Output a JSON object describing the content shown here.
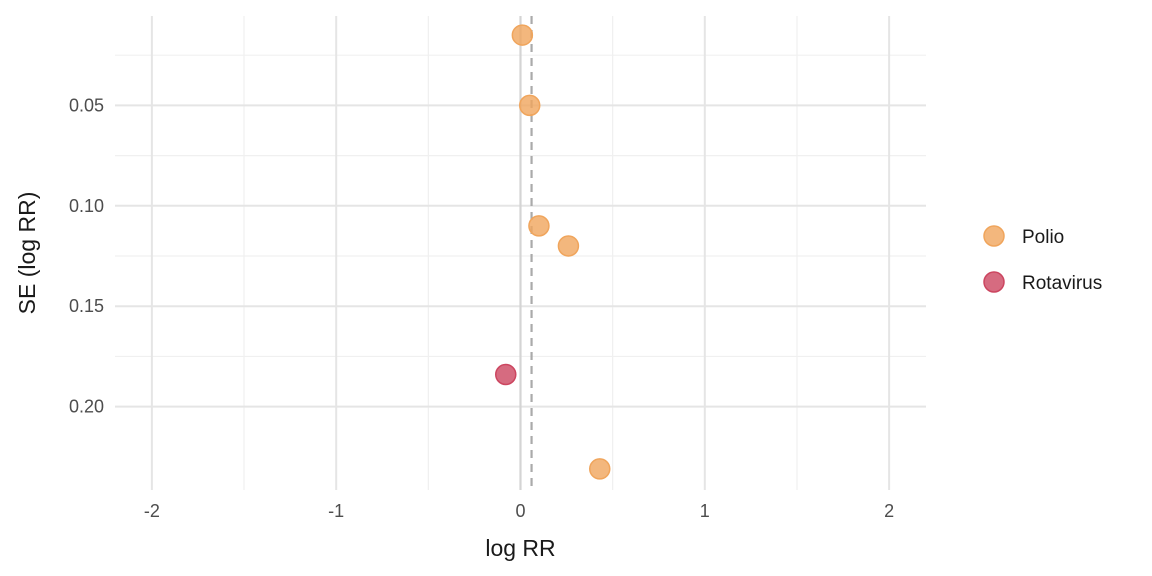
{
  "chart_data": {
    "type": "scatter",
    "title": "",
    "xlabel": "log RR",
    "ylabel": "SE (log RR)",
    "xlim": [
      -2.2,
      2.2
    ],
    "ylim": [
      0.0055,
      0.2415
    ],
    "y_reversed": true,
    "x_ticks": [
      -2,
      -1,
      0,
      1,
      2
    ],
    "x_tick_labels": [
      "-2",
      "-1",
      "0",
      "1",
      "2"
    ],
    "y_ticks": [
      0.05,
      0.1,
      0.15,
      0.2
    ],
    "y_tick_labels": [
      "0.05",
      "0.10",
      "0.15",
      "0.20"
    ],
    "reference_lines": [
      {
        "x": 0,
        "style": "solid",
        "color": "#d4d4d4"
      },
      {
        "x": 0.06,
        "style": "dashed",
        "color": "#aaaaaa"
      }
    ],
    "grid": true,
    "legend_position": "right",
    "series": [
      {
        "name": "Polio",
        "color": "#f0a55c",
        "points": [
          {
            "x": 0.01,
            "y": 0.015
          },
          {
            "x": 0.05,
            "y": 0.05
          },
          {
            "x": 0.1,
            "y": 0.11
          },
          {
            "x": 0.26,
            "y": 0.12
          },
          {
            "x": 0.43,
            "y": 0.231
          }
        ]
      },
      {
        "name": "Rotavirus",
        "color": "#cc4660",
        "points": [
          {
            "x": -0.08,
            "y": 0.184
          }
        ]
      }
    ]
  }
}
